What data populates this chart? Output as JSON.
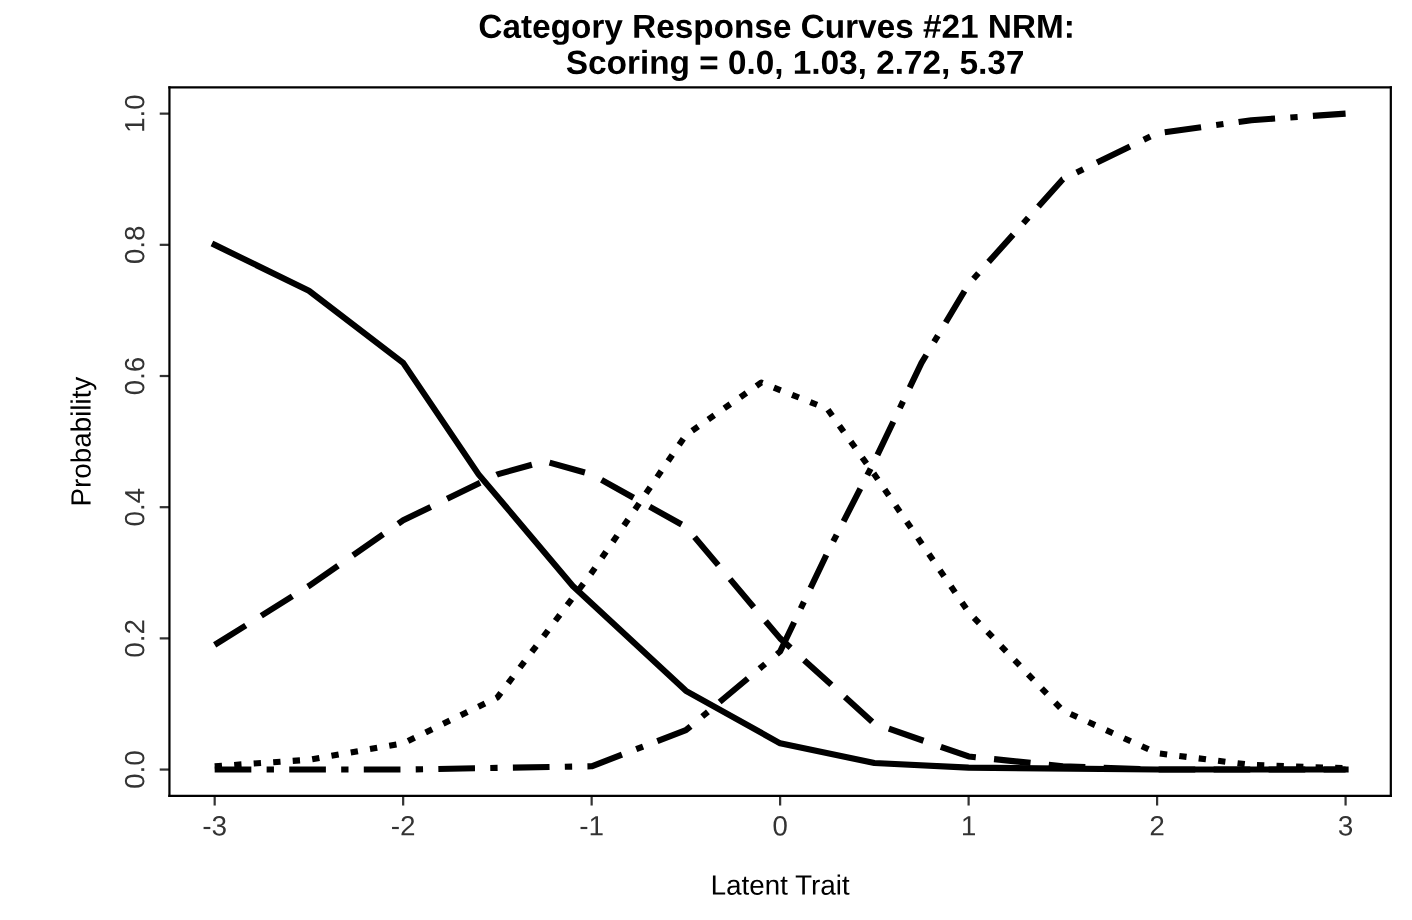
{
  "chart_data": {
    "type": "line",
    "title": "Category Response Curves #21 NRM:\n    Scoring = 0.0, 1.03, 2.72, 5.37",
    "xlabel": "Latent Trait",
    "ylabel": "Probability",
    "xlim": [
      -3.24,
      3.24
    ],
    "ylim": [
      -0.04,
      1.04
    ],
    "xticks": [
      -3,
      -2,
      -1,
      0,
      1,
      2,
      3
    ],
    "yticks": [
      {
        "value": 0,
        "label": "0.0"
      },
      {
        "value": 0.2,
        "label": "0.2"
      },
      {
        "value": 0.4,
        "label": "0.4"
      },
      {
        "value": 0.6,
        "label": "0.6"
      },
      {
        "value": 0.8,
        "label": "0.8"
      },
      {
        "value": 1,
        "label": "1.0"
      }
    ],
    "grid": false,
    "legend": false,
    "marker": "none",
    "series": [
      {
        "color": "#000000",
        "line_style": "solid",
        "x": [
          -3,
          -2.5,
          -2,
          -1.6,
          -1.1,
          -0.5,
          0,
          0.5,
          1,
          2,
          3
        ],
        "values": [
          0.8,
          0.73,
          0.62,
          0.45,
          0.28,
          0.12,
          0.04,
          0.01,
          0.003,
          0,
          0
        ]
      },
      {
        "color": "#000000",
        "line_style": "dashed",
        "x": [
          -3,
          -2.5,
          -2,
          -1.5,
          -1.25,
          -1,
          -0.5,
          0,
          0.5,
          1,
          1.5,
          2,
          3
        ],
        "values": [
          0.19,
          0.28,
          0.38,
          0.45,
          0.47,
          0.45,
          0.37,
          0.2,
          0.07,
          0.02,
          0.005,
          0,
          0
        ]
      },
      {
        "color": "#000000",
        "line_style": "dotted",
        "x": [
          -3,
          -2.5,
          -2,
          -1.5,
          -1,
          -0.5,
          -0.1,
          0.25,
          0.5,
          1,
          1.5,
          2,
          2.5,
          3
        ],
        "values": [
          0.005,
          0.015,
          0.04,
          0.11,
          0.3,
          0.51,
          0.59,
          0.55,
          0.45,
          0.24,
          0.09,
          0.025,
          0.007,
          0.002
        ]
      },
      {
        "color": "#000000",
        "line_style": "dashdot",
        "x": [
          -3,
          -2,
          -1,
          -0.5,
          0,
          0.25,
          0.5,
          0.75,
          1,
          1.5,
          2,
          2.5,
          3
        ],
        "values": [
          0,
          0,
          0.005,
          0.06,
          0.18,
          0.33,
          0.47,
          0.62,
          0.74,
          0.9,
          0.97,
          0.99,
          1.0
        ]
      }
    ]
  }
}
